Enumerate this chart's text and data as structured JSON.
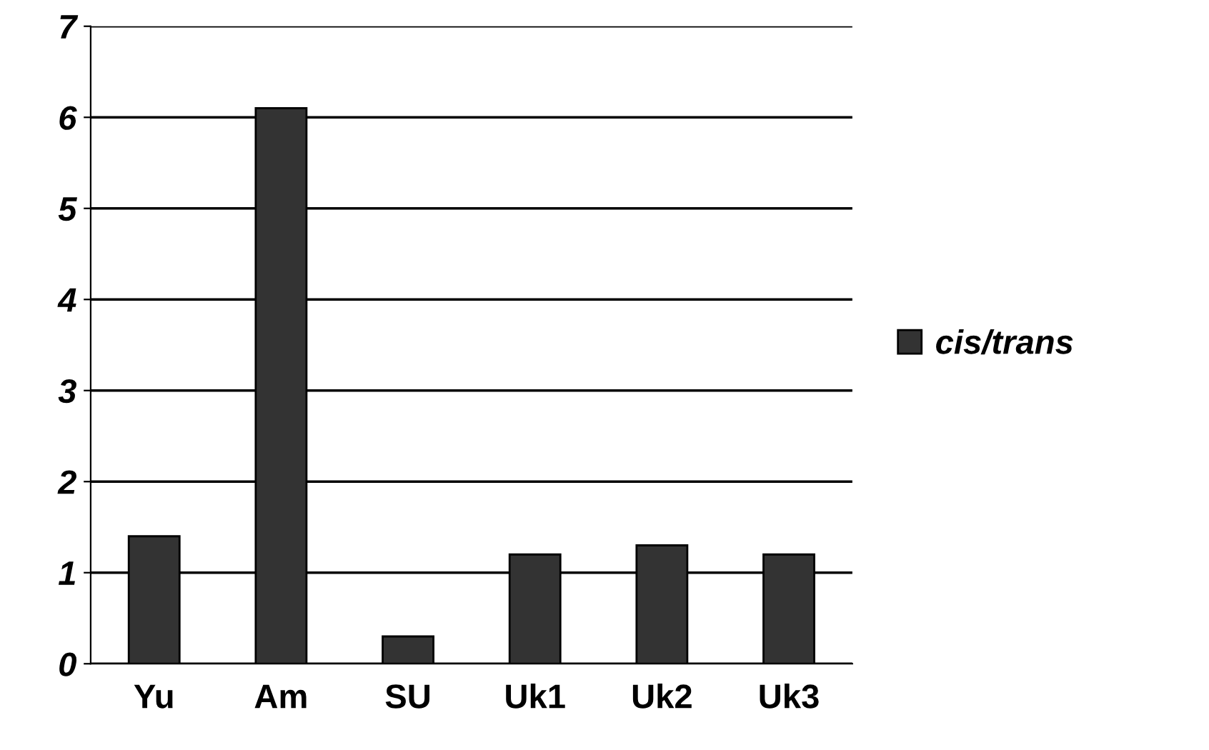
{
  "chart_data": {
    "type": "bar",
    "categories": [
      "Yu",
      "Am",
      "SU",
      "Uk1",
      "Uk2",
      "Uk3"
    ],
    "series": [
      {
        "name": "cis/trans",
        "color": "#333333",
        "values": [
          1.4,
          6.1,
          0.3,
          1.2,
          1.3,
          1.2
        ]
      }
    ],
    "ylim": [
      0,
      7
    ],
    "yticks": [
      0,
      1,
      2,
      3,
      4,
      5,
      6,
      7
    ],
    "grid": "y",
    "legend": "right"
  }
}
